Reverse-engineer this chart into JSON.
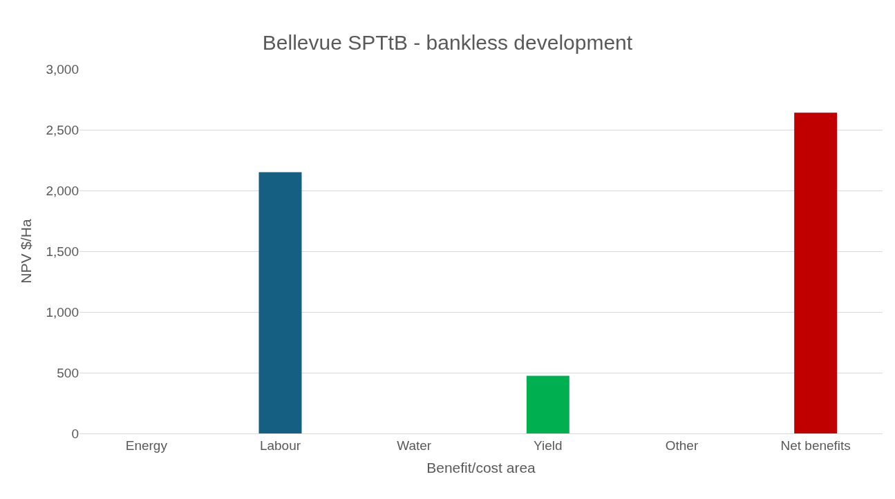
{
  "chart_data": {
    "type": "bar",
    "title": "Bellevue SPTtB - bankless development",
    "xlabel": "Benefit/cost area",
    "ylabel": "NPV $/Ha",
    "categories": [
      "Energy",
      "Labour",
      "Water",
      "Yield",
      "Other",
      "Net benefits"
    ],
    "values": [
      0,
      2150,
      0,
      475,
      0,
      2640
    ],
    "colors": [
      "#155f82",
      "#155f82",
      "#155f82",
      "#00b050",
      "#155f82",
      "#c00000"
    ],
    "ylim": [
      0,
      3000
    ],
    "yticks": [
      {
        "value": 0,
        "label": "0"
      },
      {
        "value": 500,
        "label": "500"
      },
      {
        "value": 1000,
        "label": "1,000"
      },
      {
        "value": 1500,
        "label": "1,500"
      },
      {
        "value": 2000,
        "label": "2,000"
      },
      {
        "value": 2500,
        "label": "2,500"
      },
      {
        "value": 3000,
        "label": "3,000"
      }
    ],
    "grid": "y"
  }
}
